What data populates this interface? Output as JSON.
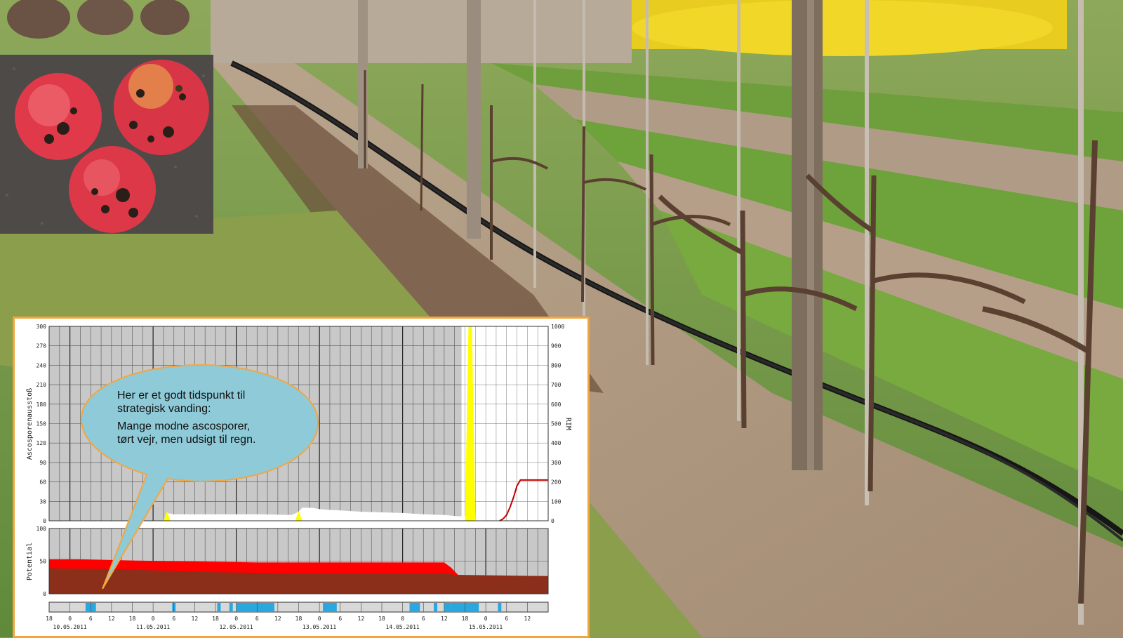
{
  "colors": {
    "grid_background": "#c8c8c8",
    "ascospore_area": "#ffffff",
    "rim_peak": "#ffff00",
    "rim_line": "#c00000",
    "potential_red": "#ff0000",
    "potential_brown": "#8b2e1a",
    "wetness_blue": "#29a8e0",
    "callout_fill": "#8ecad8",
    "callout_border": "#f2a640",
    "panel_border": "#f2a640"
  },
  "callout": {
    "line1": "Her er et godt tidspunkt til",
    "line2": "strategisk vanding:",
    "line3": "Mange modne ascosporer,",
    "line4": "tørt vejr, men udsigt til regn."
  },
  "chart_data": {
    "type": "area",
    "top_panel": {
      "left_axis": {
        "label": "Ascosporenausstoß",
        "ticks": [
          0,
          30,
          60,
          90,
          120,
          150,
          180,
          210,
          240,
          270,
          300
        ],
        "ylim": [
          0,
          300
        ]
      },
      "right_axis": {
        "label": "RIM",
        "ticks": [
          0,
          100,
          200,
          300,
          400,
          500,
          600,
          700,
          800,
          900,
          1000
        ],
        "ylim": [
          0,
          1000
        ]
      },
      "ascospore_series": {
        "hours": [
          0,
          33,
          34,
          36,
          48,
          60,
          70,
          72,
          73,
          75,
          76,
          78,
          80,
          84,
          90,
          96,
          102,
          108,
          114,
          118,
          120,
          124
        ],
        "values": [
          0,
          0,
          12,
          10,
          10,
          10,
          9,
          14,
          20,
          20,
          20,
          18,
          17,
          16,
          14,
          13,
          12,
          10,
          9,
          7,
          7,
          0
        ]
      },
      "rim_series": {
        "hours": [
          33,
          34,
          35,
          71,
          72,
          73,
          120,
          121,
          122,
          123
        ],
        "values": [
          0,
          50,
          0,
          0,
          50,
          0,
          0,
          1000,
          1000,
          0
        ]
      },
      "rim_cumulative": {
        "hours": [
          130,
          131,
          132,
          133,
          134,
          135,
          136,
          138,
          144
        ],
        "values": [
          0,
          10,
          30,
          70,
          120,
          180,
          210,
          210,
          210
        ]
      }
    },
    "potential_panel": {
      "label": "Potential",
      "ticks": [
        0,
        50,
        100
      ],
      "ylim": [
        0,
        100
      ],
      "red_top": {
        "hours": [
          0,
          8,
          16,
          24,
          36,
          48,
          60,
          72,
          84,
          96,
          108,
          114,
          116,
          118,
          144
        ],
        "values": [
          53,
          53,
          52,
          51,
          50,
          49,
          48,
          48,
          48,
          48,
          48,
          48,
          40,
          29,
          27
        ]
      },
      "brown_top": {
        "hours": [
          0,
          18,
          36,
          48,
          60,
          72,
          84,
          96,
          108,
          114,
          116,
          118,
          144
        ],
        "values": [
          39,
          38,
          35,
          33,
          32,
          31,
          31,
          31,
          31,
          31,
          30,
          28,
          27
        ]
      }
    },
    "wetness_strip": {
      "hours": [
        10,
        11,
        17,
        18,
        30,
        31,
        35,
        36,
        40,
        41,
        42,
        43,
        45,
        46,
        55,
        56,
        58,
        59,
        61,
        62,
        63,
        64,
        88,
        89,
        89,
        90,
        94,
        95,
        95,
        96,
        109,
        110,
        112,
        113,
        114,
        115,
        116,
        117,
        120,
        121,
        132,
        133,
        133,
        134
      ],
      "segments": [
        [
          10.5,
          13.5
        ],
        [
          35.5,
          36.5
        ],
        [
          48.5,
          49.5
        ],
        [
          52,
          53
        ],
        [
          54,
          65
        ],
        [
          79,
          80.5
        ],
        [
          80.5,
          83
        ],
        [
          104,
          107
        ],
        [
          111,
          112
        ],
        [
          114,
          116
        ],
        [
          116,
          124
        ],
        [
          129.5,
          130.5
        ]
      ]
    },
    "x_axis": {
      "hour_ticks": [
        "18",
        "0",
        "6",
        "12",
        "18",
        "0",
        "6",
        "12",
        "18",
        "0",
        "6",
        "12",
        "18",
        "0",
        "6",
        "12",
        "18",
        "0",
        "6",
        "12",
        "18",
        "0",
        "6",
        "12"
      ],
      "dates": [
        "10.05.2011",
        "11.05.2011",
        "12.05.2011",
        "13.05.2011",
        "14.05.2011",
        "15.05.2011"
      ]
    }
  }
}
